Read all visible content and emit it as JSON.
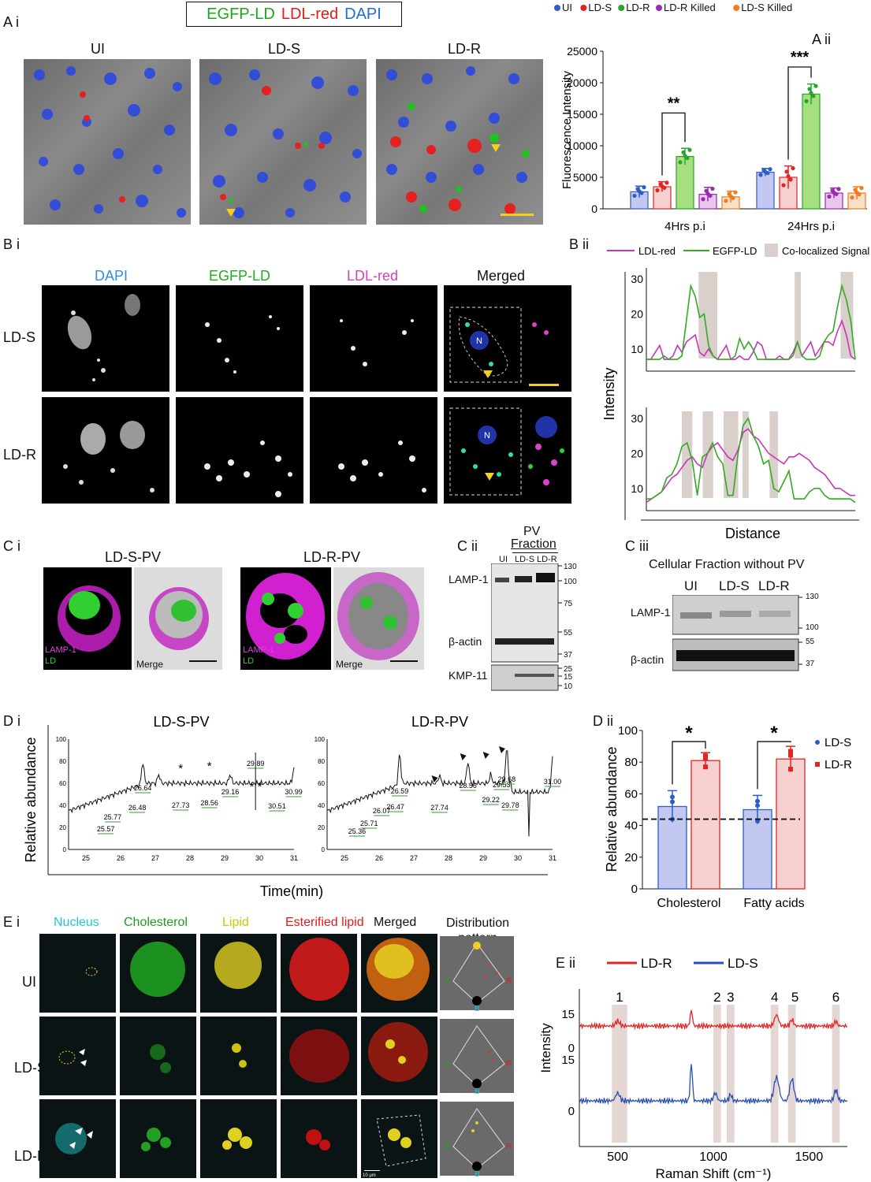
{
  "panels": {
    "Ai_label": "A i",
    "Aii_label": "A ii",
    "Bi_label": "B i",
    "Bii_label": "B ii",
    "Ci_label": "C i",
    "Cii_label": "C ii",
    "Ciii_label": "C iii",
    "Di_label": "D i",
    "Dii_label": "D ii",
    "Ei_label": "E i",
    "Eii_label": "E ii"
  },
  "A": {
    "legend": [
      "EGFP-LD",
      "LDL-red",
      "DAPI"
    ],
    "legend_colors": [
      "#1ea51e",
      "#e01b1b",
      "#1f6fd1"
    ],
    "images": [
      "UI",
      "LD-S",
      "LD-R"
    ]
  },
  "B": {
    "cols": [
      "DAPI",
      "EGFP-LD",
      "LDL-red",
      "Merged"
    ],
    "col_colors": [
      "#2f8de4",
      "#22aa22",
      "#d63fbf",
      "#111111"
    ],
    "rows": [
      "LD-S",
      "LD-R"
    ],
    "n_marker": "N"
  },
  "C": {
    "images": [
      "LD-S-PV",
      "LD-R-PV"
    ],
    "lamp_label": "LAMP-1",
    "ld_label": "LD",
    "merge_label": "Merge",
    "cii_title": "PV",
    "cii_subtitle": "Fraction",
    "cii_lanes": [
      "UI",
      "LD-S",
      "LD-R"
    ],
    "cii_bands": [
      "LAMP-1",
      "β-actin",
      "KMP-11"
    ],
    "cii_markers": [
      "130",
      "100",
      "75",
      "55",
      "37",
      "25",
      "15",
      "10"
    ],
    "ciii_title": "Cellular Fraction without PV",
    "ciii_lanes": [
      "UI",
      "LD-S",
      "LD-R"
    ],
    "ciii_bands": [
      "LAMP-1",
      "β-actin"
    ],
    "ciii_markers": [
      "130",
      "100",
      "55",
      "37"
    ]
  },
  "E": {
    "cols": [
      "Nucleus",
      "Cholesterol",
      "Lipid",
      "Esterified lipid",
      "Merged",
      "Distribution pattern"
    ],
    "col_colors": [
      "#1ec8d8",
      "#1f9a1f",
      "#c9c900",
      "#e01b1b",
      "#111111",
      "#111111"
    ],
    "rows": [
      "UI",
      "LD-S",
      "LD-R"
    ],
    "scale_text": "10 μm",
    "axis_letters": [
      "G",
      "R",
      "B"
    ]
  },
  "chart_data": [
    {
      "id": "Aii",
      "type": "bar",
      "ylabel": "Fluorescence Intensity",
      "ylim": [
        0,
        25000
      ],
      "yticks": [
        0,
        5000,
        10000,
        15000,
        20000,
        25000
      ],
      "categories": [
        "4Hrs p.i",
        "24Hrs p.i"
      ],
      "legend_position": "top",
      "series": [
        {
          "name": "UI",
          "color": "#2b5ec9",
          "fill": "#c2c8f0",
          "values": [
            2700,
            5800
          ],
          "errors": [
            900,
            600
          ]
        },
        {
          "name": "LD-S",
          "color": "#e02525",
          "fill": "#f7d0d0",
          "values": [
            3500,
            5000
          ],
          "errors": [
            800,
            1800
          ]
        },
        {
          "name": "LD-R",
          "color": "#2aa52a",
          "fill": "#a6e07e",
          "values": [
            8300,
            18200
          ],
          "errors": [
            1300,
            1600
          ]
        },
        {
          "name": "LD-R Killed",
          "color": "#9a2ab0",
          "fill": "#e8c6ee",
          "values": [
            2300,
            2500
          ],
          "errors": [
            1100,
            800
          ]
        },
        {
          "name": "LD-S Killed",
          "color": "#f07a1e",
          "fill": "#fbe0c8",
          "values": [
            1900,
            2500
          ],
          "errors": [
            900,
            1000
          ]
        }
      ],
      "significance": [
        "**",
        "***"
      ]
    },
    {
      "id": "Bii",
      "type": "line",
      "ylabel": "Intensity",
      "xlabel": "Distance",
      "legend": [
        "LDL-red",
        "EGFP-LD",
        "Co-localized Signal"
      ],
      "colors": [
        "#cc33bb",
        "#33aa22",
        "#d9cfcb"
      ],
      "top_yticks": [
        10,
        20,
        30
      ],
      "bottom_yticks": [
        10,
        20,
        30
      ],
      "top_green": [
        7,
        7,
        7,
        7,
        8,
        7,
        7,
        7,
        8,
        18,
        28,
        25,
        19,
        20,
        11,
        8,
        7,
        7,
        7,
        7,
        8,
        13,
        10,
        12,
        10,
        7,
        7,
        7,
        7,
        7,
        7,
        7,
        7,
        8,
        12,
        8,
        7,
        7,
        7,
        8,
        12,
        14,
        15,
        22,
        28,
        24,
        18,
        7
      ],
      "top_magenta": [
        7,
        7,
        9,
        11,
        7,
        7,
        8,
        11,
        9,
        12,
        13,
        14,
        9,
        8,
        10,
        8,
        7,
        9,
        11,
        7,
        7,
        8,
        7,
        7,
        9,
        12,
        11,
        7,
        7,
        7,
        8,
        7,
        7,
        9,
        12,
        8,
        10,
        12,
        8,
        10,
        12,
        12,
        11,
        15,
        18,
        14,
        8,
        7
      ],
      "bottom_green": [
        7,
        7,
        8,
        9,
        13,
        14,
        17,
        22,
        23,
        18,
        8,
        19,
        20,
        23,
        19,
        17,
        8,
        8,
        20,
        28,
        30,
        25,
        22,
        17,
        18,
        10,
        9,
        12,
        15,
        7,
        7,
        7,
        9,
        10,
        10,
        8,
        7,
        7,
        7,
        7,
        7,
        6
      ],
      "bottom_magenta": [
        6,
        7,
        8,
        9,
        11,
        13,
        14,
        16,
        18,
        19,
        17,
        16,
        20,
        22,
        23,
        21,
        19,
        18,
        21,
        26,
        27,
        25,
        24,
        22,
        20,
        19,
        18,
        17,
        19,
        19,
        20,
        19,
        18,
        16,
        15,
        14,
        12,
        10,
        10,
        9,
        8,
        8
      ],
      "top_shaded": [
        [
          0.25,
          0.34
        ],
        [
          0.71,
          0.74
        ],
        [
          0.93,
          0.99
        ]
      ],
      "bottom_shaded": [
        [
          0.17,
          0.22
        ],
        [
          0.27,
          0.32
        ],
        [
          0.37,
          0.44
        ],
        [
          0.46,
          0.49
        ],
        [
          0.59,
          0.63
        ]
      ]
    },
    {
      "id": "Di",
      "type": "line",
      "ylabel": "Relative abundance",
      "xlabel": "Time(min)",
      "titles": [
        "LD-S-PV",
        "LD-R-PV"
      ],
      "xlim": [
        24.5,
        31
      ],
      "xticks": [
        25,
        26,
        27,
        28,
        29,
        30,
        31
      ],
      "yticks": [
        0,
        20,
        40,
        60,
        80,
        100
      ],
      "peaks_LD_S": [
        "25.57",
        "25.77",
        "26.48",
        "26.64",
        "27.73",
        "28.56",
        "29.16",
        "29.89",
        "30.51",
        "30.99"
      ],
      "peaks_LD_R": [
        "25.36",
        "25.71",
        "26.07",
        "26.47",
        "26.59",
        "27.74",
        "28.56",
        "29.22",
        "29.53",
        "29.68",
        "29.78",
        "31.00"
      ],
      "markers_LD_S": [
        "*",
        "*",
        "* *"
      ]
    },
    {
      "id": "Dii",
      "type": "bar",
      "ylabel": "Relative abundance",
      "ylim": [
        0,
        100
      ],
      "yticks": [
        0,
        20,
        40,
        60,
        80,
        100
      ],
      "categories": [
        "Cholesterol",
        "Fatty acids"
      ],
      "series": [
        {
          "name": "LD-S",
          "color": "#2b5ec9",
          "fill": "#c2c8f0",
          "values": [
            52,
            50
          ],
          "errors": [
            10,
            9
          ]
        },
        {
          "name": "LD-R",
          "color": "#e02525",
          "fill": "#f7d0d0",
          "values": [
            81,
            82
          ],
          "errors": [
            5,
            8
          ]
        }
      ],
      "reference_line": 44,
      "significance": [
        "*",
        "*"
      ]
    },
    {
      "id": "Eii",
      "type": "line",
      "ylabel": "Intensity",
      "xlabel": "Raman Shift (cm⁻¹)",
      "xlim": [
        300,
        1700
      ],
      "xticks": [
        500,
        1000,
        1500
      ],
      "yticks_top": [
        0,
        15
      ],
      "yticks_bottom": [
        0,
        15
      ],
      "series": [
        {
          "name": "LD-R",
          "color": "#e02525"
        },
        {
          "name": "LD-S",
          "color": "#2b4fb0"
        }
      ],
      "band_labels": [
        "1",
        "2",
        "3",
        "4",
        "5",
        "6"
      ],
      "bands": [
        [
          470,
          550
        ],
        [
          1000,
          1040
        ],
        [
          1070,
          1110
        ],
        [
          1300,
          1340
        ],
        [
          1390,
          1430
        ],
        [
          1620,
          1660
        ]
      ],
      "peak_positions": [
        500,
        885,
        1010,
        1090,
        1330,
        1410,
        1640
      ]
    }
  ]
}
